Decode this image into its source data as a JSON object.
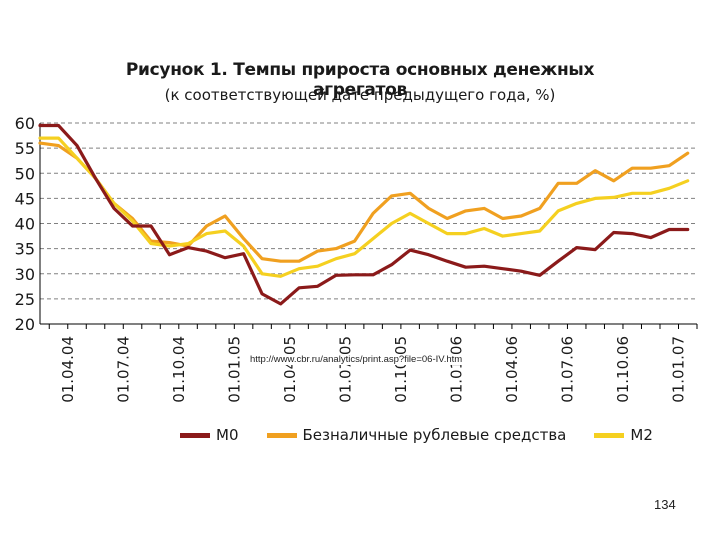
{
  "chart_data": {
    "type": "line",
    "title": "Рисунок 1. Темпы прироста основных денежных агрегатов",
    "subtitle": "(к соответствующей дате предыдущего года, %)",
    "ylim": [
      20,
      60
    ],
    "yticks": [
      20,
      25,
      30,
      35,
      40,
      45,
      50,
      55,
      60
    ],
    "xlim": [
      0,
      36
    ],
    "xticks": [
      {
        "x": 0,
        "label": "01.04.04"
      },
      {
        "x": 3,
        "label": "01.07.04"
      },
      {
        "x": 6,
        "label": "01.10.04"
      },
      {
        "x": 9,
        "label": "01.01.05"
      },
      {
        "x": 12,
        "label": "01.04.05"
      },
      {
        "x": 15,
        "label": "01.07.05"
      },
      {
        "x": 18,
        "label": "01.10.05"
      },
      {
        "x": 21,
        "label": "01.01.06"
      },
      {
        "x": 24,
        "label": "01.04.06"
      },
      {
        "x": 27,
        "label": "01.07.06"
      },
      {
        "x": 30,
        "label": "01.10.06"
      },
      {
        "x": 33,
        "label": "01.01.07"
      }
    ],
    "grid": "horizontal-dashed",
    "legend_position": "bottom",
    "series": [
      {
        "name": "М0",
        "color": "#8b1a1a",
        "x": [
          -1.5,
          -0.5,
          0.5,
          1.5,
          2.5,
          3.5,
          4.5,
          5.5,
          6.5,
          7.5,
          8.5,
          9.5,
          10.5,
          11.5,
          12.5,
          13.5,
          14.5,
          15.5,
          16.5,
          17.5,
          18.5,
          19.5,
          20.5,
          21.5,
          22.5,
          23.5,
          24.5,
          25.5,
          26.5,
          27.5,
          28.5,
          29.5,
          30.5,
          31.5,
          32.5,
          33.5
        ],
        "y": [
          59.5,
          59.5,
          55.5,
          49,
          43,
          39.5,
          39.5,
          33.8,
          35.2,
          34.5,
          33.2,
          34,
          26,
          24,
          27.2,
          27.5,
          29.7,
          29.8,
          29.8,
          31.8,
          34.7,
          33.8,
          32.5,
          31.3,
          31.5,
          31,
          30.5,
          29.7,
          32.5,
          35.2,
          34.8,
          38.2,
          38,
          37.2,
          38.8,
          38.8
        ]
      },
      {
        "name": "Безналичные рублевые средства",
        "color": "#f0a020",
        "x": [
          -1.5,
          -0.5,
          0.5,
          1.5,
          2.5,
          3.5,
          4.5,
          5.5,
          6.5,
          7.5,
          8.5,
          9.5,
          10.5,
          11.5,
          12.5,
          13.5,
          14.5,
          15.5,
          16.5,
          17.5,
          18.5,
          19.5,
          20.5,
          21.5,
          22.5,
          23.5,
          24.5,
          25.5,
          26.5,
          27.5,
          28.5,
          29.5,
          30.5,
          31.5,
          32.5,
          33.5
        ],
        "y": [
          56,
          55.5,
          53,
          49,
          44,
          41,
          36.5,
          36.2,
          35.5,
          39.5,
          41.5,
          37,
          33,
          32.5,
          32.5,
          34.5,
          35,
          36.5,
          42,
          45.5,
          46,
          43,
          41,
          42.5,
          43,
          41,
          41.5,
          43,
          48,
          48,
          50.5,
          48.5,
          51,
          51,
          51.5,
          54
        ]
      },
      {
        "name": "М2",
        "color": "#f5d020",
        "x": [
          -1.5,
          -0.5,
          0.5,
          1.5,
          2.5,
          3.5,
          4.5,
          5.5,
          6.5,
          7.5,
          8.5,
          9.5,
          10.5,
          11.5,
          12.5,
          13.5,
          14.5,
          15.5,
          16.5,
          17.5,
          18.5,
          19.5,
          20.5,
          21.5,
          22.5,
          23.5,
          24.5,
          25.5,
          26.5,
          27.5,
          28.5,
          29.5,
          30.5,
          31.5,
          32.5,
          33.5
        ],
        "y": [
          57,
          57,
          53,
          49,
          44,
          40.5,
          36,
          35.5,
          36,
          38,
          38.5,
          35.5,
          30,
          29.5,
          31,
          31.5,
          33,
          34,
          37,
          40,
          42,
          40,
          38,
          38,
          39,
          37.5,
          38,
          38.5,
          42.5,
          44,
          45,
          45.2,
          46,
          46,
          47,
          48.5
        ]
      }
    ]
  },
  "source_text": "http://www.cbr.ru/analytics/print.asp?file=06-IV.htm",
  "page_number": "134"
}
